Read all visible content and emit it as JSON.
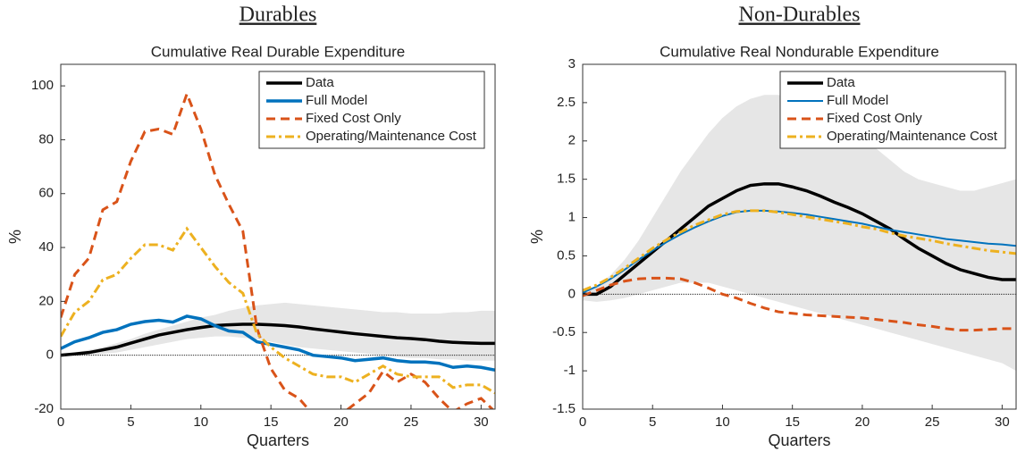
{
  "chart_data": [
    {
      "type": "line",
      "heading": "Durables",
      "title": "Cumulative Real Durable Expenditure",
      "xlabel": "Quarters",
      "ylabel": "%",
      "x": [
        0,
        1,
        2,
        3,
        4,
        5,
        6,
        7,
        8,
        9,
        10,
        11,
        12,
        13,
        14,
        15,
        16,
        17,
        18,
        19,
        20,
        21,
        22,
        23,
        24,
        25,
        26,
        27,
        28,
        29,
        30,
        31
      ],
      "xlim": [
        0,
        31
      ],
      "xticks": [
        0,
        5,
        10,
        15,
        20,
        25,
        30
      ],
      "ylim": [
        -20,
        108
      ],
      "yticks": [
        -20,
        0,
        20,
        40,
        60,
        80,
        100
      ],
      "band_color": "#e6e6e6",
      "band_upper": [
        0,
        1,
        2,
        3,
        4.5,
        6,
        8,
        9.5,
        11,
        12.5,
        14,
        15,
        16.5,
        17.5,
        18.5,
        19,
        19.5,
        19,
        18.5,
        18,
        17.5,
        17,
        16.5,
        16,
        16,
        15.5,
        15.5,
        15.5,
        16,
        16,
        16.5,
        16.5
      ],
      "band_lower": [
        0,
        0,
        0,
        0.5,
        1,
        2,
        3,
        4,
        5,
        6,
        6.5,
        7,
        7,
        6.5,
        6,
        5,
        4,
        3,
        2.5,
        2,
        1.5,
        1,
        0.5,
        0,
        -0.5,
        -1,
        -1,
        -1.5,
        -1.5,
        -2,
        -2,
        -2
      ],
      "legend": "upper right",
      "series": [
        {
          "name": "Data",
          "color": "#000000",
          "width": 3.5,
          "dash": "solid",
          "values": [
            0,
            0.5,
            1,
            2,
            3,
            4.5,
            6,
            7.5,
            8.5,
            9.5,
            10.3,
            11,
            11.3,
            11.5,
            11.5,
            11.3,
            11,
            10.5,
            9.8,
            9.2,
            8.6,
            8,
            7.5,
            7,
            6.5,
            6.2,
            5.8,
            5.2,
            4.8,
            4.6,
            4.4,
            4.4
          ]
        },
        {
          "name": "Full Model",
          "color": "#0072BD",
          "width": 3.5,
          "dash": "solid",
          "values": [
            2.5,
            5,
            6.5,
            8.5,
            9.5,
            11.5,
            12.5,
            13,
            12.3,
            14.5,
            13.5,
            11,
            9,
            8.5,
            5,
            4,
            3,
            2,
            0,
            -0.5,
            -1,
            -2,
            -1.5,
            -1,
            -2,
            -2.5,
            -2.5,
            -3,
            -4.5,
            -4,
            -4.5,
            -5.5
          ]
        },
        {
          "name": "Fixed Cost Only",
          "color": "#D95319",
          "width": 3,
          "dash": "dashed",
          "values": [
            14,
            30,
            36,
            54,
            57,
            72,
            83,
            84,
            82,
            97,
            84,
            67,
            56,
            46,
            10,
            -5,
            -13,
            -16,
            -22,
            -24,
            -22,
            -18,
            -14,
            -6,
            -10,
            -7,
            -10,
            -16,
            -21,
            -18,
            -16,
            -21
          ]
        },
        {
          "name": "Operating/Maintenance Cost",
          "color": "#EDB120",
          "width": 3,
          "dash": "dashdot",
          "values": [
            7,
            16,
            20,
            28,
            30,
            36,
            41,
            41,
            39,
            47,
            40,
            33,
            27,
            23,
            8,
            3,
            -1,
            -4,
            -7,
            -8,
            -8,
            -10,
            -7,
            -4,
            -7,
            -8,
            -8,
            -8,
            -12,
            -11,
            -11,
            -14
          ]
        }
      ]
    },
    {
      "type": "line",
      "heading": "Non-Durables",
      "title": "Cumulative Real Nondurable Expenditure",
      "xlabel": "Quarters",
      "ylabel": "%",
      "x": [
        0,
        1,
        2,
        3,
        4,
        5,
        6,
        7,
        8,
        9,
        10,
        11,
        12,
        13,
        14,
        15,
        16,
        17,
        18,
        19,
        20,
        21,
        22,
        23,
        24,
        25,
        26,
        27,
        28,
        29,
        30,
        31
      ],
      "xlim": [
        0,
        31
      ],
      "xticks": [
        0,
        5,
        10,
        15,
        20,
        25,
        30
      ],
      "ylim": [
        -1.5,
        3
      ],
      "yticks": [
        -1.5,
        -1,
        -0.5,
        0,
        0.5,
        1,
        1.5,
        2,
        2.5,
        3
      ],
      "band_color": "#e6e6e6",
      "band_upper": [
        0.02,
        0.1,
        0.25,
        0.45,
        0.7,
        1.0,
        1.3,
        1.6,
        1.85,
        2.1,
        2.3,
        2.45,
        2.55,
        2.6,
        2.6,
        2.55,
        2.5,
        2.4,
        2.3,
        2.2,
        2.05,
        1.9,
        1.75,
        1.6,
        1.5,
        1.45,
        1.4,
        1.35,
        1.35,
        1.4,
        1.45,
        1.5
      ],
      "band_lower": [
        -0.08,
        -0.1,
        -0.08,
        -0.05,
        0.0,
        0.05,
        0.1,
        0.15,
        0.15,
        0.15,
        0.1,
        0.05,
        0.0,
        -0.05,
        -0.1,
        -0.15,
        -0.2,
        -0.25,
        -0.3,
        -0.35,
        -0.4,
        -0.45,
        -0.5,
        -0.55,
        -0.6,
        -0.65,
        -0.7,
        -0.75,
        -0.8,
        -0.85,
        -0.9,
        -1.0
      ],
      "legend": "upper right",
      "series": [
        {
          "name": "Data",
          "color": "#000000",
          "width": 3.5,
          "dash": "solid",
          "values": [
            0,
            0,
            0.1,
            0.25,
            0.4,
            0.55,
            0.7,
            0.85,
            1.0,
            1.15,
            1.25,
            1.35,
            1.42,
            1.44,
            1.44,
            1.4,
            1.35,
            1.28,
            1.2,
            1.13,
            1.05,
            0.95,
            0.85,
            0.72,
            0.6,
            0.5,
            0.4,
            0.32,
            0.27,
            0.22,
            0.19,
            0.19
          ]
        },
        {
          "name": "Full Model",
          "color": "#0072BD",
          "width": 2,
          "dash": "solid",
          "values": [
            0.02,
            0.1,
            0.2,
            0.32,
            0.45,
            0.57,
            0.68,
            0.78,
            0.87,
            0.95,
            1.02,
            1.07,
            1.09,
            1.09,
            1.08,
            1.06,
            1.04,
            1.01,
            0.98,
            0.95,
            0.92,
            0.88,
            0.84,
            0.81,
            0.78,
            0.75,
            0.72,
            0.7,
            0.68,
            0.66,
            0.65,
            0.63
          ]
        },
        {
          "name": "Fixed Cost Only",
          "color": "#D95319",
          "width": 3,
          "dash": "dashed",
          "values": [
            -0.02,
            0.05,
            0.12,
            0.17,
            0.2,
            0.21,
            0.21,
            0.2,
            0.15,
            0.08,
            0.0,
            -0.05,
            -0.12,
            -0.18,
            -0.23,
            -0.25,
            -0.27,
            -0.28,
            -0.29,
            -0.3,
            -0.31,
            -0.33,
            -0.35,
            -0.37,
            -0.4,
            -0.42,
            -0.45,
            -0.47,
            -0.47,
            -0.46,
            -0.45,
            -0.45
          ]
        },
        {
          "name": "Operating/Maintenance Cost",
          "color": "#EDB120",
          "width": 3,
          "dash": "dashdot",
          "values": [
            0.05,
            0.12,
            0.22,
            0.34,
            0.47,
            0.6,
            0.71,
            0.81,
            0.9,
            0.97,
            1.04,
            1.08,
            1.09,
            1.09,
            1.07,
            1.04,
            1.01,
            0.98,
            0.95,
            0.92,
            0.88,
            0.85,
            0.8,
            0.76,
            0.73,
            0.7,
            0.66,
            0.63,
            0.6,
            0.57,
            0.55,
            0.53
          ]
        }
      ]
    }
  ]
}
